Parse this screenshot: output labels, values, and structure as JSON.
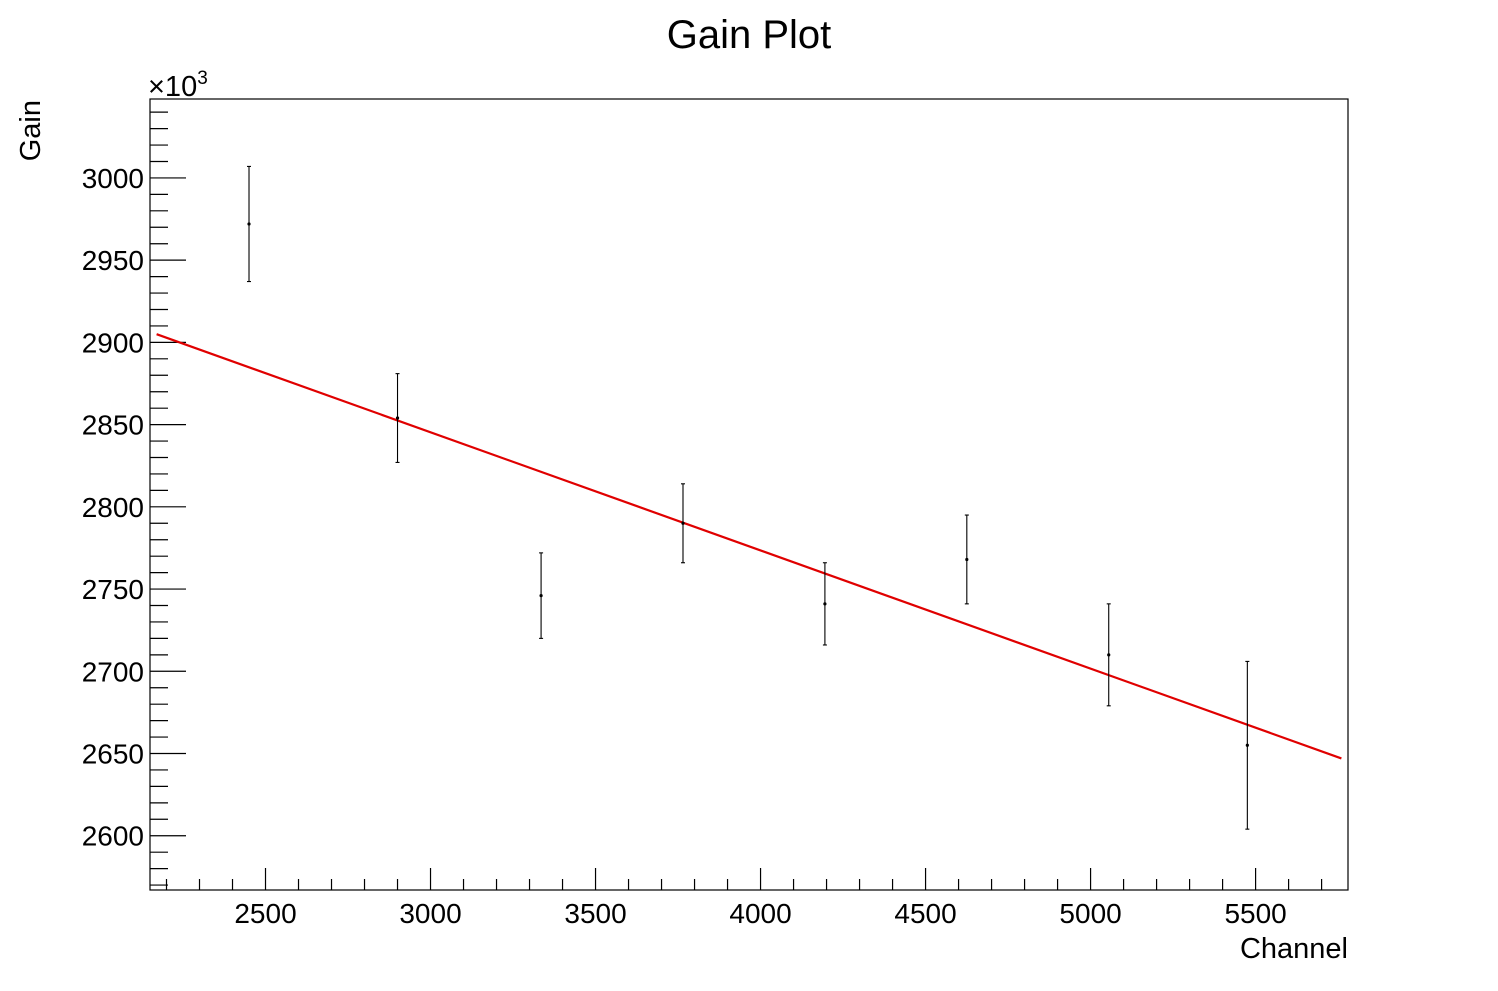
{
  "chart_data": {
    "type": "scatter",
    "title": "Gain Plot",
    "xlabel": "Channel",
    "ylabel": "Gain",
    "y_multiplier_label": "×10",
    "y_multiplier_exponent": "3",
    "xlim": [
      2150,
      5780
    ],
    "ylim": [
      2567,
      3048
    ],
    "x_ticks": [
      2500,
      3000,
      3500,
      4000,
      4500,
      5000,
      5500
    ],
    "x_tick_labels": [
      "2500",
      "3000",
      "3500",
      "4000",
      "4500",
      "5000",
      "5500"
    ],
    "y_ticks": [
      2600,
      2650,
      2700,
      2750,
      2800,
      2850,
      2900,
      2950,
      3000
    ],
    "y_tick_labels": [
      "2600",
      "2650",
      "2700",
      "2750",
      "2800",
      "2850",
      "2900",
      "2950",
      "3000"
    ],
    "grid": false,
    "points": [
      {
        "x": 2450,
        "y": 2972,
        "err": 35
      },
      {
        "x": 2900,
        "y": 2854,
        "err": 27
      },
      {
        "x": 3335,
        "y": 2746,
        "err": 26
      },
      {
        "x": 3765,
        "y": 2790,
        "err": 24
      },
      {
        "x": 4195,
        "y": 2741,
        "err": 25
      },
      {
        "x": 4625,
        "y": 2768,
        "err": 27
      },
      {
        "x": 5055,
        "y": 2710,
        "err": 31
      },
      {
        "x": 5475,
        "y": 2655,
        "err": 51
      }
    ],
    "fit_line": {
      "x": [
        2170,
        5760
      ],
      "y": [
        2905,
        2647
      ],
      "color": "#e00000"
    }
  }
}
